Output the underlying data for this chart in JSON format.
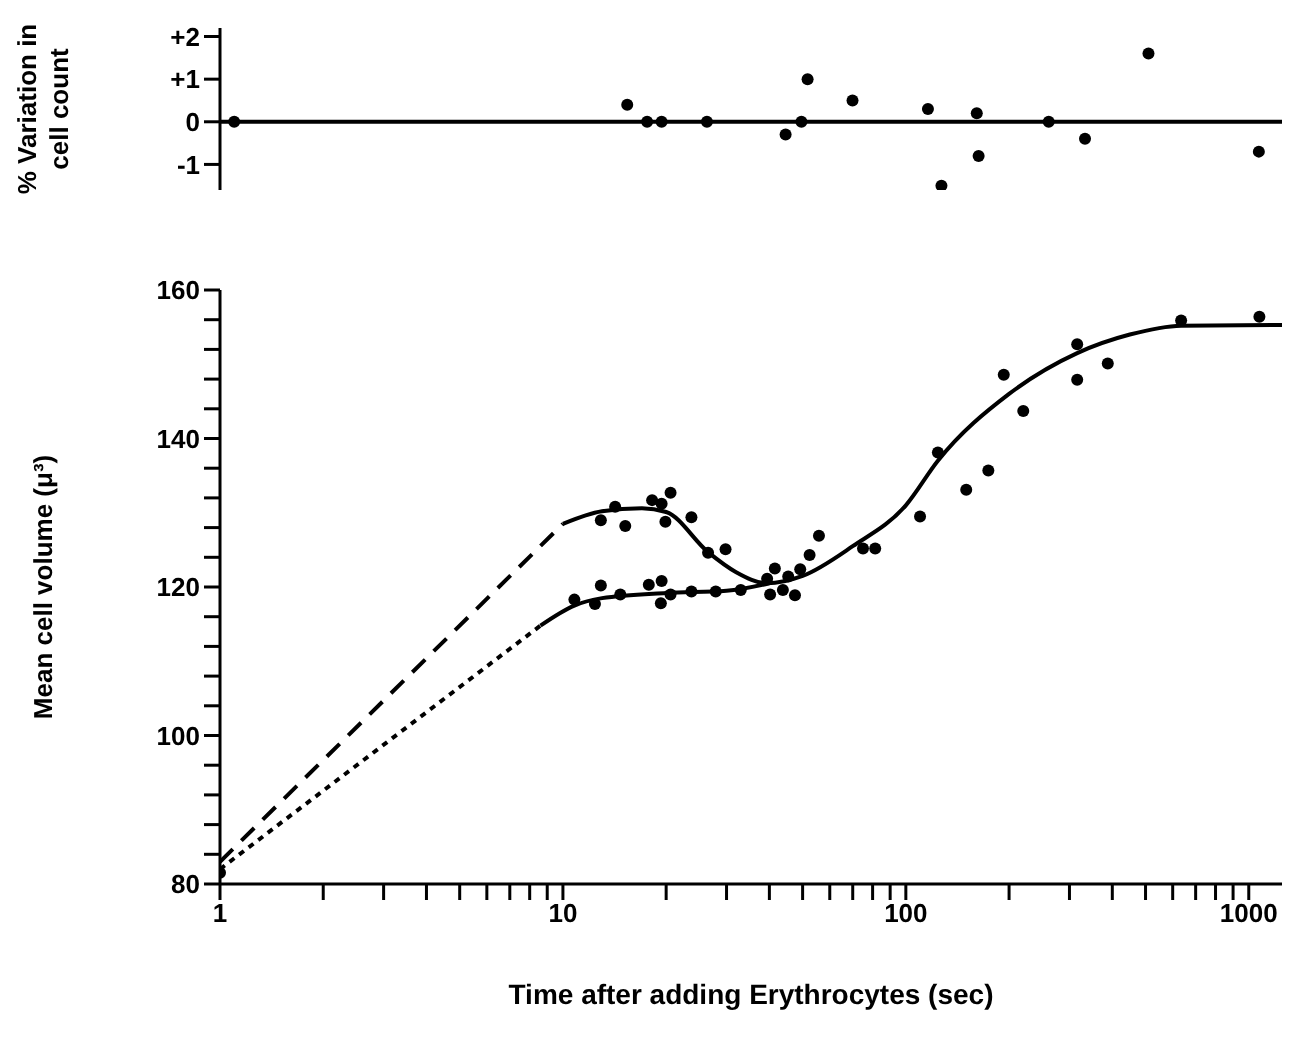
{
  "chart_data": [
    {
      "type": "scatter",
      "ylabel": "% Variation in cell count",
      "xlim": [
        1,
        1250
      ],
      "log": "x",
      "ylim": [
        -1.6,
        2.2
      ],
      "yticks": [
        {
          "value": 2,
          "label": "+2"
        },
        {
          "value": 1,
          "label": "+1"
        },
        0,
        -1
      ],
      "tick_labels": "y",
      "grid": false,
      "legend": false,
      "ref_lines": [
        {
          "axis": "y",
          "value": 0,
          "color": "#000000"
        }
      ],
      "series": [
        {
          "marker": "circle",
          "color": "#000000",
          "x": [
            1.1,
            15.4,
            17.6,
            19.4,
            26.3,
            44.6,
            49.6,
            51.7,
            69.9,
            116,
            127,
            161,
            163,
            261,
            333,
            510,
            1070
          ],
          "values": [
            0,
            0.4,
            0,
            0,
            0,
            -0.3,
            0,
            1.0,
            0.5,
            0.3,
            -1.5,
            0.2,
            -0.8,
            0,
            -0.4,
            1.6,
            -0.7
          ]
        }
      ]
    },
    {
      "type": "scatter",
      "xlabel": "Time after adding Erythrocytes  (sec)",
      "ylabel": "Mean cell volume (μ³)",
      "xlim": [
        1,
        1250
      ],
      "log": "x",
      "ylim": [
        80,
        160
      ],
      "grid": false,
      "legend": false,
      "xticks": [
        1,
        {
          "value": 2,
          "label": null
        },
        {
          "value": 3,
          "label": null
        },
        {
          "value": 4,
          "label": null
        },
        {
          "value": 5,
          "label": null
        },
        {
          "value": 6,
          "label": null
        },
        {
          "value": 7,
          "label": null
        },
        {
          "value": 8,
          "label": null
        },
        {
          "value": 9,
          "label": null
        },
        10,
        {
          "value": 20,
          "label": null
        },
        {
          "value": 30,
          "label": null
        },
        {
          "value": 40,
          "label": null
        },
        {
          "value": 50,
          "label": null
        },
        {
          "value": 60,
          "label": null
        },
        {
          "value": 70,
          "label": null
        },
        {
          "value": 80,
          "label": null
        },
        {
          "value": 90,
          "label": null
        },
        100,
        {
          "value": 200,
          "label": null
        },
        {
          "value": 300,
          "label": null
        },
        {
          "value": 400,
          "label": null
        },
        {
          "value": 500,
          "label": null
        },
        {
          "value": 600,
          "label": null
        },
        {
          "value": 700,
          "label": null
        },
        {
          "value": 800,
          "label": null
        },
        {
          "value": 900,
          "label": null
        },
        1000
      ],
      "yticks": [
        80,
        {
          "value": 84,
          "label": null
        },
        {
          "value": 88,
          "label": null
        },
        {
          "value": 92,
          "label": null
        },
        {
          "value": 96,
          "label": null
        },
        100,
        {
          "value": 104,
          "label": null
        },
        {
          "value": 108,
          "label": null
        },
        {
          "value": 112,
          "label": null
        },
        {
          "value": 116,
          "label": null
        },
        120,
        {
          "value": 124,
          "label": null
        },
        {
          "value": 128,
          "label": null
        },
        {
          "value": 132,
          "label": null
        },
        {
          "value": 136,
          "label": null
        },
        140,
        {
          "value": 144,
          "label": null
        },
        {
          "value": 148,
          "label": null
        },
        {
          "value": 152,
          "label": null
        },
        {
          "value": 156,
          "label": null
        },
        160
      ],
      "series": [
        {
          "marker": "circle",
          "color": "#000000",
          "x": [
            1,
            12.9,
            14.2,
            15.2,
            18.2,
            19.4,
            20.6,
            19.9,
            23.7,
            26.5,
            29.8,
            10.8,
            12.4,
            12.9,
            14.7,
            17.8,
            19.4,
            19.3,
            20.6,
            23.7,
            27.9,
            33.0,
            39.4,
            40.2,
            41.5,
            43.8,
            45.4,
            47.5,
            49.2,
            52.4,
            55.8,
            75,
            81.4,
            110,
            124,
            150,
            174,
            193,
            220,
            316,
            316,
            388,
            635,
            1074
          ],
          "values": [
            81.5,
            129,
            130.8,
            128.2,
            131.7,
            131.2,
            132.7,
            128.8,
            129.4,
            124.6,
            125.1,
            118.3,
            117.7,
            120.2,
            119,
            120.3,
            120.8,
            117.8,
            119,
            119.4,
            119.4,
            119.6,
            121.1,
            119,
            122.5,
            119.6,
            121.4,
            118.9,
            122.4,
            124.3,
            126.9,
            125.2,
            125.2,
            129.5,
            138.1,
            133.1,
            135.7,
            148.6,
            143.7,
            152.7,
            147.9,
            150.1,
            155.9,
            156.4
          ]
        },
        {
          "type": "line",
          "color": "#000000",
          "line_style": "dashed",
          "marker": "none",
          "x": [
            1,
            10
          ],
          "values": [
            83,
            128.5
          ]
        },
        {
          "type": "line",
          "color": "#000000",
          "line_style": "dotted",
          "marker": "none",
          "x": [
            1,
            8.6
          ],
          "values": [
            82,
            114.8
          ]
        },
        {
          "type": "line",
          "color": "#000000",
          "line_style": "solid",
          "marker": "none",
          "x": [
            10,
            13,
            17,
            20,
            26.5,
            32,
            39.4,
            50,
            70,
            100,
            124,
            200,
            316,
            450,
            635,
            1250
          ],
          "values": [
            128.5,
            130.2,
            130.6,
            130.1,
            124.7,
            122,
            120.5,
            121.5,
            125.5,
            131,
            137,
            146,
            151.5,
            154,
            155.2,
            155.3
          ]
        },
        {
          "type": "line",
          "color": "#000000",
          "line_style": "solid",
          "marker": "none",
          "x": [
            8.6,
            10.8,
            13,
            20,
            30,
            40
          ],
          "values": [
            114.8,
            117.5,
            118.5,
            119.2,
            119.5,
            120.5
          ]
        }
      ]
    }
  ]
}
